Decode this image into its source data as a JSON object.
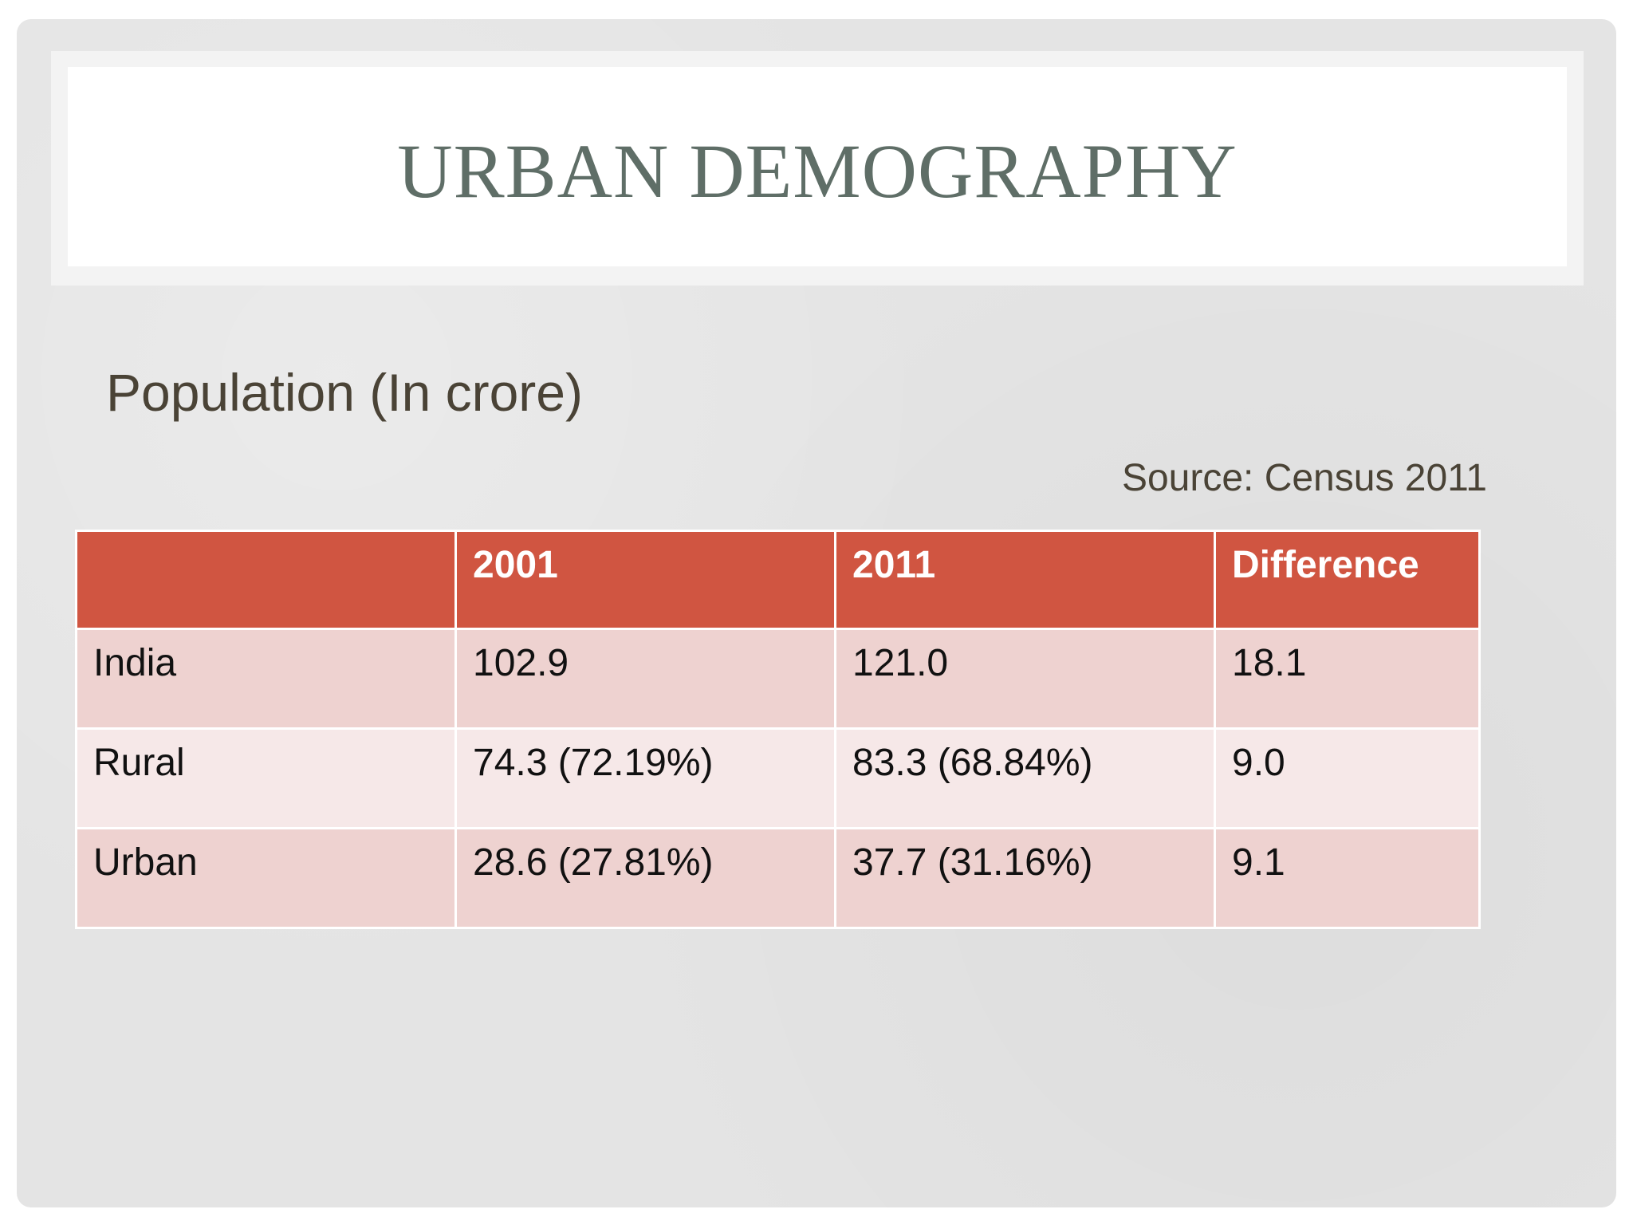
{
  "slide": {
    "title": "URBAN DEMOGRAPHY",
    "subtitle": "Population (In crore)",
    "source": "Source: Census 2011"
  },
  "table": {
    "headers": [
      "",
      "2001",
      "2011",
      "Difference"
    ],
    "rows": [
      [
        "India",
        "102.9",
        "121.0",
        "18.1"
      ],
      [
        "Rural",
        "74.3 (72.19%)",
        "83.3 (68.84%)",
        "9.0"
      ],
      [
        "Urban",
        "28.6 (27.81%)",
        "37.7 (31.16%)",
        "9.1"
      ]
    ]
  },
  "colors": {
    "header_fill": "#d05541",
    "row_odd_fill": "#eed2d0",
    "row_even_fill": "#f6e8e8",
    "title_text": "#5f6e67"
  }
}
